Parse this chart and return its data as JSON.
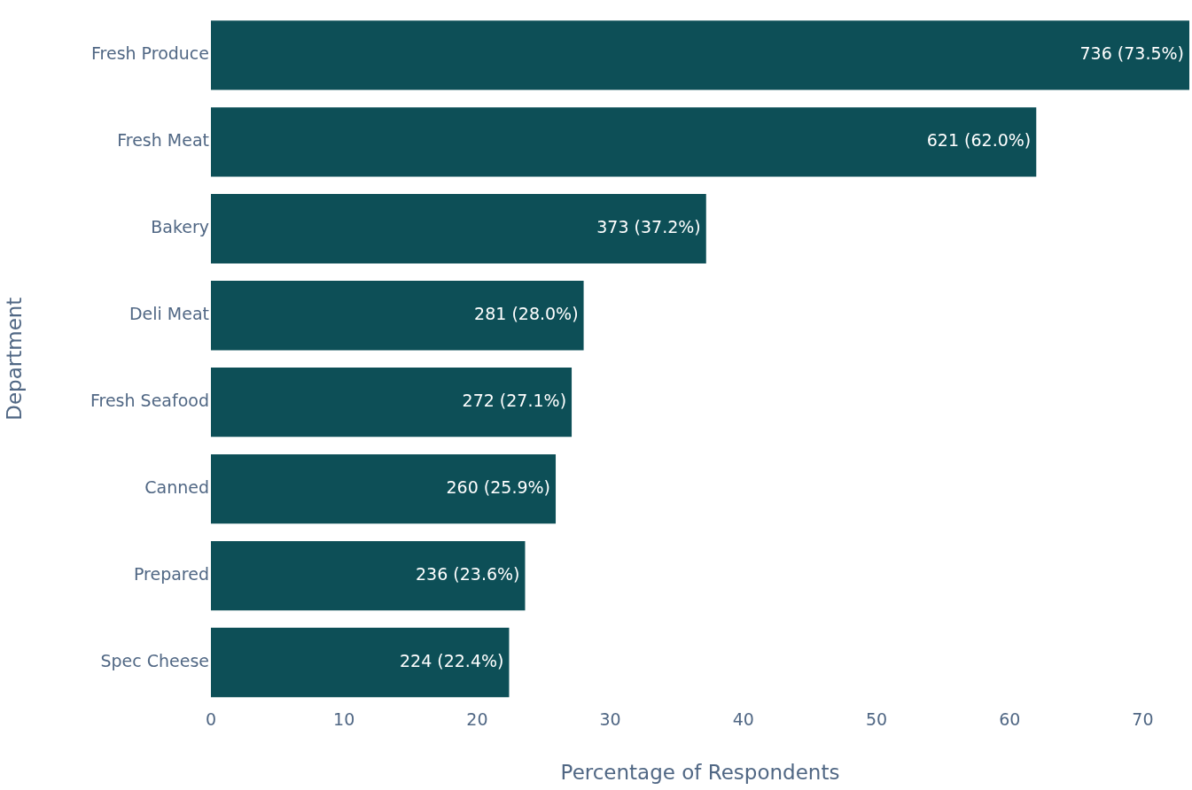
{
  "chart_data": {
    "type": "bar",
    "orientation": "horizontal",
    "xlabel": "Percentage of Respondents",
    "ylabel": "Department",
    "categories": [
      "Fresh Produce",
      "Fresh Meat",
      "Bakery",
      "Deli Meat",
      "Fresh Seafood",
      "Canned",
      "Prepared",
      "Spec Cheese"
    ],
    "values": [
      73.5,
      62.0,
      37.2,
      28.0,
      27.1,
      25.9,
      23.6,
      22.4
    ],
    "value_labels": [
      "736 (73.5%)",
      "621 (62.0%)",
      "373 (37.2%)",
      "281 (28.0%)",
      "272 (27.1%)",
      "260 (25.9%)",
      "236 (23.6%)",
      "224 (22.4%)"
    ],
    "color": "#0d4f57",
    "xlim": [
      0,
      73.5
    ],
    "xticks": [
      0,
      10,
      20,
      30,
      40,
      50,
      60,
      70
    ],
    "grid": false,
    "legend": false
  }
}
